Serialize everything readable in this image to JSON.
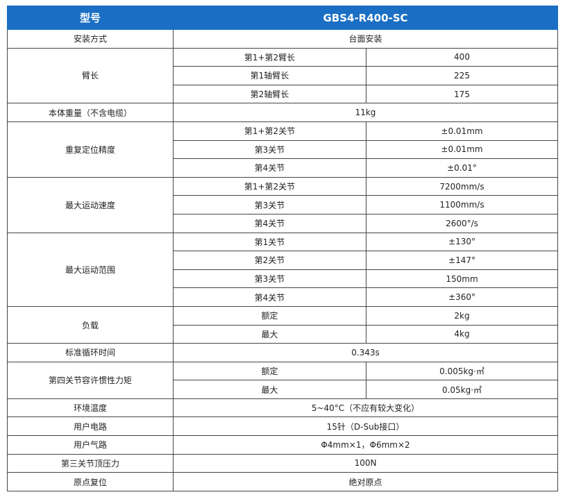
{
  "header": {
    "label": "型号",
    "model": "GBS4-R400-SC"
  },
  "rows": [
    {
      "label": "安装方式",
      "value": "台面安装"
    },
    {
      "label": "臂长",
      "items": [
        {
          "name": "第1+第2臂长",
          "value": "400"
        },
        {
          "name": "第1轴臂长",
          "value": "225"
        },
        {
          "name": "第2轴臂长",
          "value": "175"
        }
      ]
    },
    {
      "label": "本体重量（不含电缆）",
      "value": "11kg"
    },
    {
      "label": "重复定位精度",
      "items": [
        {
          "name": "第1+第2关节",
          "value": "±0.01mm"
        },
        {
          "name": "第3关节",
          "value": "±0.01mm"
        },
        {
          "name": "第4关节",
          "value": "±0.01°"
        }
      ]
    },
    {
      "label": "最大运动速度",
      "items": [
        {
          "name": "第1+第2关节",
          "value": "7200mm/s"
        },
        {
          "name": "第3关节",
          "value": "1100mm/s"
        },
        {
          "name": "第4关节",
          "value": "2600°/s"
        }
      ]
    },
    {
      "label": "最大运动范围",
      "items": [
        {
          "name": "第1关节",
          "value": "±130°"
        },
        {
          "name": "第2关节",
          "value": "±147°"
        },
        {
          "name": "第3关节",
          "value": "150mm"
        },
        {
          "name": "第4关节",
          "value": "±360°"
        }
      ]
    },
    {
      "label": "负载",
      "items": [
        {
          "name": "额定",
          "value": "2kg"
        },
        {
          "name": "最大",
          "value": "4kg"
        }
      ]
    },
    {
      "label": "标准循环时间",
      "value": "0.343s"
    },
    {
      "label": "第四关节容许惯性力矩",
      "items": [
        {
          "name": "额定",
          "value": "0.005kg·㎡"
        },
        {
          "name": "最大",
          "value": "0.05kg·㎡"
        }
      ]
    },
    {
      "label": "环境温度",
      "value": "5~40°C（不应有较大变化）"
    },
    {
      "label": "用户电路",
      "value": "15针（D-Sub接口）"
    },
    {
      "label": "用户气路",
      "value": "Φ4mm×1，Φ6mm×2"
    },
    {
      "label": "第三关节顶压力",
      "value": "100N"
    },
    {
      "label": "原点复位",
      "value": "绝对原点"
    }
  ]
}
